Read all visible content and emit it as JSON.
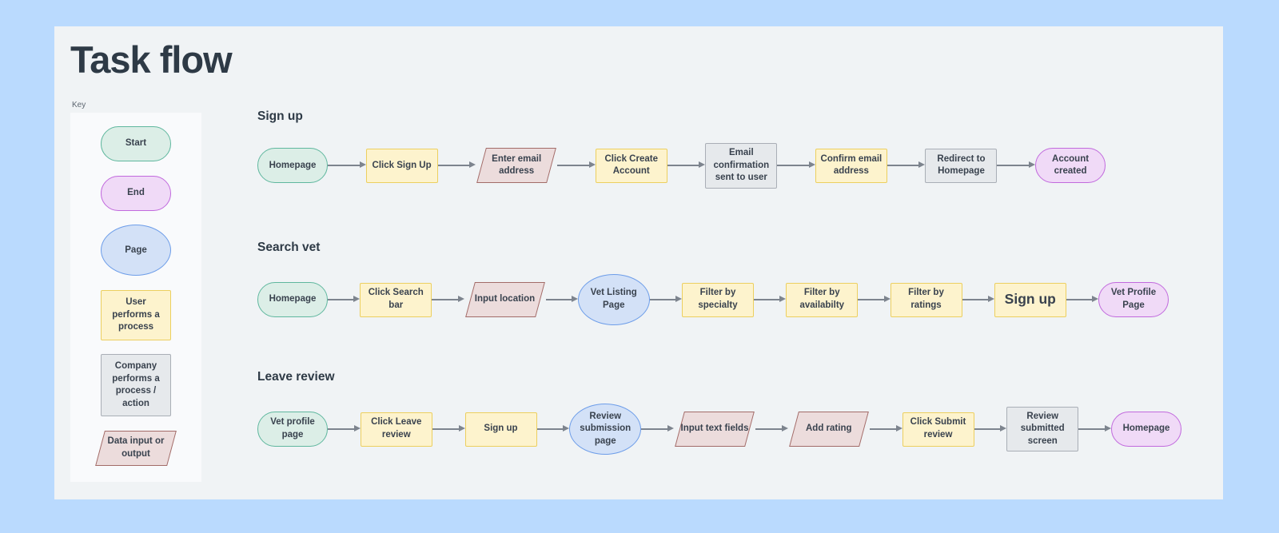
{
  "page": {
    "title": "Task flow"
  },
  "key": {
    "label": "Key",
    "items": [
      {
        "type": "start",
        "label": "Start"
      },
      {
        "type": "end",
        "label": "End"
      },
      {
        "type": "page",
        "label": "Page"
      },
      {
        "type": "user",
        "label": "User performs a process"
      },
      {
        "type": "company",
        "label": "Company performs a process / action"
      },
      {
        "type": "data",
        "label": "Data input or output"
      }
    ]
  },
  "flows": [
    {
      "title": "Sign up",
      "nodes": [
        {
          "type": "start",
          "label": "Homepage"
        },
        {
          "type": "user",
          "label": "Click Sign Up"
        },
        {
          "type": "data",
          "label": "Enter email address"
        },
        {
          "type": "user",
          "label": "Click Create Account"
        },
        {
          "type": "company",
          "label": "Email confirmation sent to user"
        },
        {
          "type": "user",
          "label": "Confirm email address"
        },
        {
          "type": "company",
          "label": "Redirect to Homepage"
        },
        {
          "type": "end",
          "label": "Account created"
        }
      ]
    },
    {
      "title": "Search vet",
      "nodes": [
        {
          "type": "start",
          "label": "Homepage"
        },
        {
          "type": "user",
          "label": "Click Search bar"
        },
        {
          "type": "data",
          "label": "Input location"
        },
        {
          "type": "page",
          "label": "Vet Listing Page"
        },
        {
          "type": "user",
          "label": "Filter by specialty"
        },
        {
          "type": "user",
          "label": "Filter by availabilty"
        },
        {
          "type": "user",
          "label": "Filter by ratings"
        },
        {
          "type": "user",
          "label": "Sign up",
          "large": true
        },
        {
          "type": "end",
          "label": "Vet Profile Page"
        }
      ]
    },
    {
      "title": "Leave review",
      "nodes": [
        {
          "type": "start",
          "label": "Vet profile page"
        },
        {
          "type": "user",
          "label": "Click Leave review"
        },
        {
          "type": "user",
          "label": "Sign up"
        },
        {
          "type": "page",
          "label": "Review submission page"
        },
        {
          "type": "data",
          "label": "Input text fields"
        },
        {
          "type": "data",
          "label": "Add rating"
        },
        {
          "type": "user",
          "label": "Click Submit review"
        },
        {
          "type": "company",
          "label": "Review submitted screen"
        },
        {
          "type": "end",
          "label": "Homepage"
        }
      ]
    }
  ],
  "colors": {
    "background": "#badafe",
    "canvas": "#f0f3f5",
    "key_panel": "#f9fafc",
    "heading_text": "#2e3a46",
    "node_text": "#39424e",
    "arrow": "#7d848e",
    "start_fill": "#dceee7",
    "start_border": "#5fb79e",
    "end_fill": "#f0daf7",
    "end_border": "#c169dd",
    "page_fill": "#d3e1f7",
    "page_border": "#6d9de9",
    "user_fill": "#fdf3cd",
    "user_border": "#eccf5f",
    "company_fill": "#e6e9ec",
    "company_border": "#a9aeb6",
    "data_fill": "#ecdcdc",
    "data_border": "#a26b68"
  }
}
